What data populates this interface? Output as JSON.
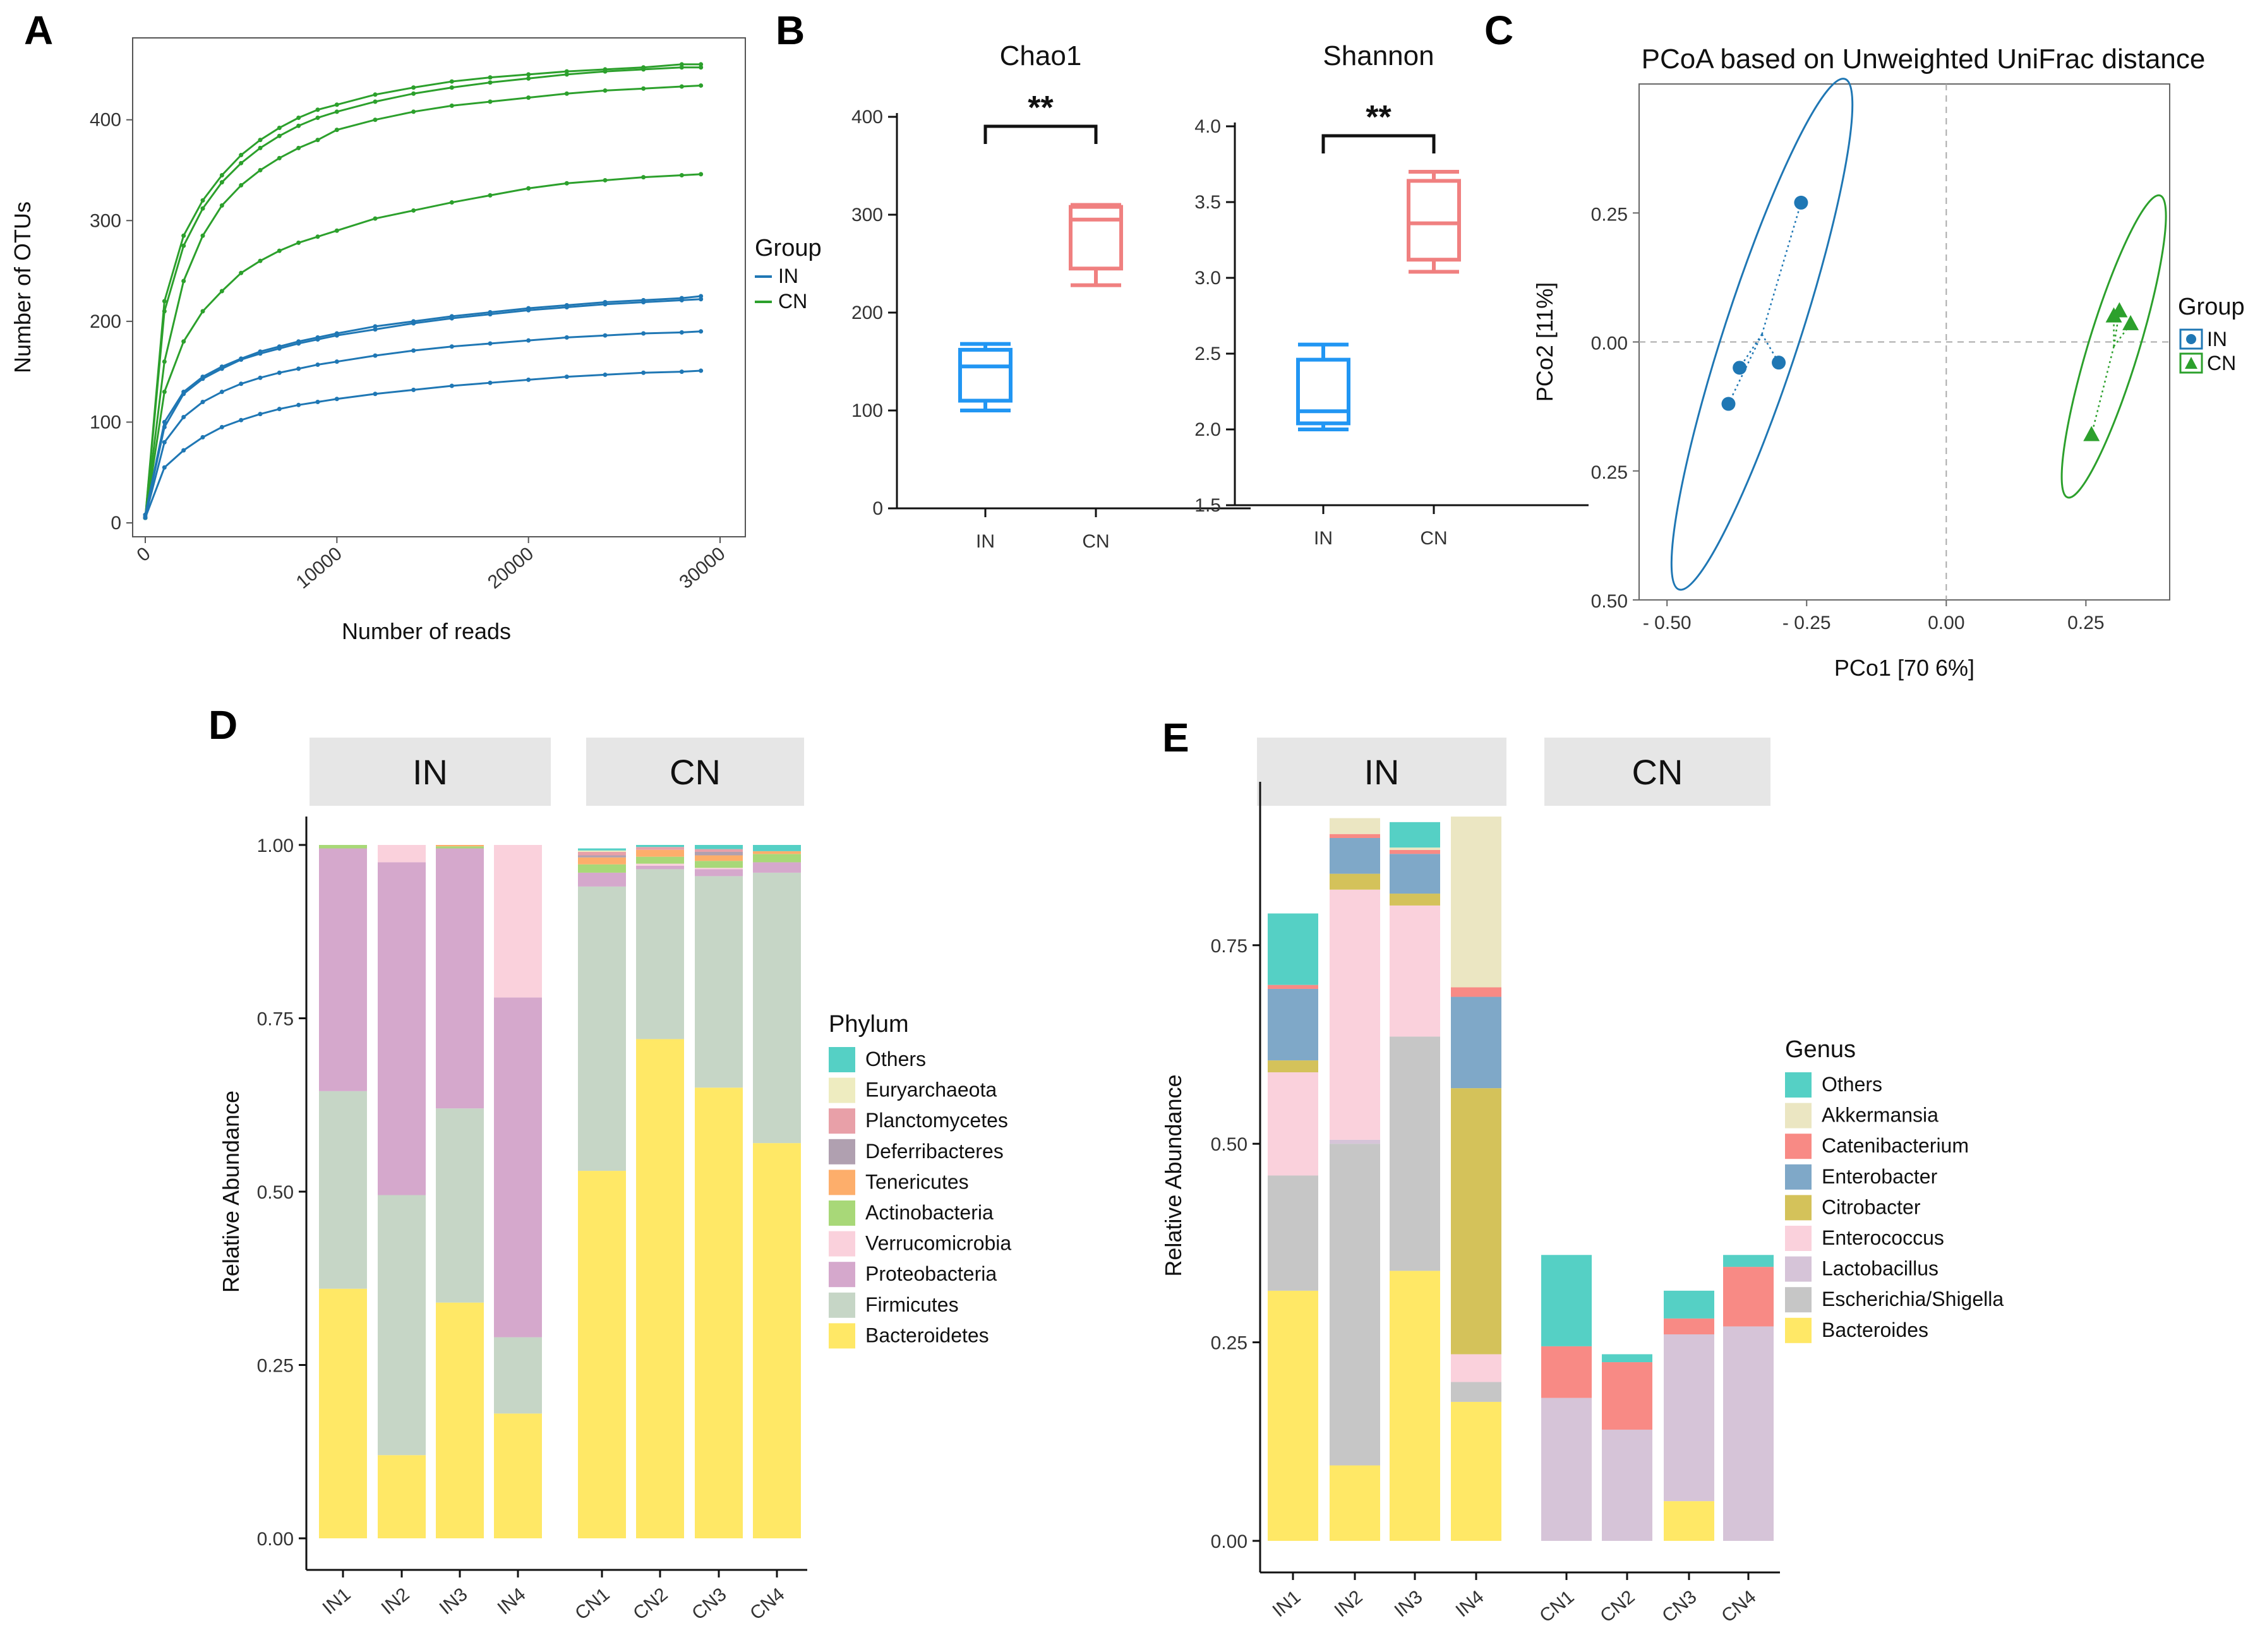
{
  "chart_data": [
    {
      "panel": "A",
      "type": "line",
      "xlabel": "Number of reads",
      "ylabel": "Number of OTUs",
      "xlim": [
        0,
        30000
      ],
      "ylim": [
        0,
        470
      ],
      "xticks": [
        0,
        10000,
        20000,
        30000
      ],
      "yticks": [
        0,
        100,
        200,
        300,
        400
      ],
      "legend_title": "Group",
      "legend": [
        {
          "name": "IN",
          "color": "#1f77b4"
        },
        {
          "name": "CN",
          "color": "#2ca02c"
        }
      ],
      "x": [
        0,
        1000,
        2000,
        3000,
        4000,
        5000,
        6000,
        7000,
        8000,
        9000,
        10000,
        12000,
        14000,
        16000,
        18000,
        20000,
        22000,
        24000,
        26000,
        28000,
        29000
      ],
      "series": [
        {
          "name": "CN",
          "values": [
            5,
            220,
            285,
            320,
            345,
            365,
            380,
            392,
            402,
            410,
            415,
            425,
            432,
            438,
            442,
            445,
            448,
            450,
            452,
            455,
            455
          ]
        },
        {
          "name": "CN",
          "values": [
            5,
            210,
            275,
            312,
            338,
            357,
            372,
            384,
            394,
            402,
            408,
            418,
            426,
            432,
            437,
            441,
            445,
            448,
            450,
            452,
            452
          ]
        },
        {
          "name": "CN",
          "values": [
            5,
            160,
            240,
            285,
            315,
            335,
            350,
            362,
            372,
            380,
            390,
            400,
            408,
            414,
            418,
            422,
            426,
            429,
            431,
            433,
            434
          ]
        },
        {
          "name": "CN",
          "values": [
            5,
            130,
            180,
            210,
            230,
            248,
            260,
            270,
            278,
            284,
            290,
            302,
            310,
            318,
            325,
            332,
            337,
            340,
            343,
            345,
            346
          ]
        },
        {
          "name": "IN",
          "values": [
            8,
            100,
            130,
            145,
            155,
            163,
            170,
            175,
            180,
            184,
            188,
            195,
            200,
            205,
            209,
            213,
            216,
            219,
            221,
            223,
            225
          ]
        },
        {
          "name": "IN",
          "values": [
            8,
            95,
            128,
            143,
            153,
            162,
            168,
            173,
            178,
            182,
            186,
            192,
            198,
            203,
            207,
            211,
            214,
            217,
            219,
            221,
            222
          ]
        },
        {
          "name": "IN",
          "values": [
            6,
            80,
            105,
            120,
            130,
            138,
            144,
            149,
            153,
            157,
            160,
            166,
            171,
            175,
            178,
            181,
            184,
            186,
            188,
            189,
            190
          ]
        },
        {
          "name": "IN",
          "values": [
            5,
            55,
            72,
            85,
            95,
            102,
            108,
            113,
            117,
            120,
            123,
            128,
            132,
            136,
            139,
            142,
            145,
            147,
            149,
            150,
            151
          ]
        }
      ]
    },
    {
      "panel": "B1",
      "type": "box",
      "title": "Chao1",
      "categories": [
        "IN",
        "CN"
      ],
      "ylim": [
        0,
        400
      ],
      "yticks": [
        0,
        100,
        200,
        300,
        400
      ],
      "significance": "**",
      "boxes": [
        {
          "name": "IN",
          "min": 100,
          "q1": 110,
          "median": 145,
          "q3": 162,
          "max": 168,
          "color": "#2196f3"
        },
        {
          "name": "CN",
          "min": 228,
          "q1": 245,
          "median": 295,
          "q3": 308,
          "max": 310,
          "color": "#f08080"
        }
      ]
    },
    {
      "panel": "B2",
      "type": "box",
      "title": "Shannon",
      "categories": [
        "IN",
        "CN"
      ],
      "ylim": [
        1.5,
        4.0
      ],
      "yticks": [
        1.5,
        2.0,
        2.5,
        3.0,
        3.5,
        4.0
      ],
      "ytick_labels": [
        "1.5",
        "2.0",
        "2.5",
        "3.0",
        "3.5",
        "4.0"
      ],
      "significance": "**",
      "boxes": [
        {
          "name": "IN",
          "min": 2.0,
          "q1": 2.04,
          "median": 2.12,
          "q3": 2.46,
          "max": 2.56,
          "color": "#2196f3"
        },
        {
          "name": "CN",
          "min": 3.04,
          "q1": 3.12,
          "median": 3.36,
          "q3": 3.64,
          "max": 3.7,
          "color": "#f08080"
        }
      ]
    },
    {
      "panel": "C",
      "type": "scatter",
      "title": "PCoA based on Unweighted UniFrac distance",
      "xlabel": "PCo1 [70 6%]",
      "ylabel": "PCo2 [11%]",
      "xlim": [
        -0.55,
        0.4
      ],
      "ylim": [
        -0.5,
        0.5
      ],
      "xticks": [
        -0.5,
        -0.25,
        0.0,
        0.25
      ],
      "xtick_labels": [
        "- 0.50",
        "- 0.25",
        "0.00",
        "0.25"
      ],
      "yticks": [
        0.25,
        0.0,
        -0.25,
        -0.5
      ],
      "ytick_labels": [
        "0.25",
        "0.00",
        "0.25",
        "0.50"
      ],
      "legend_title": "Group",
      "groups": [
        {
          "name": "IN",
          "color": "#1f77b4",
          "marker": "circle",
          "points": [
            [
              -0.26,
              0.27
            ],
            [
              -0.37,
              -0.05
            ],
            [
              -0.3,
              -0.04
            ],
            [
              -0.39,
              -0.12
            ]
          ]
        },
        {
          "name": "CN",
          "color": "#2ca02c",
          "marker": "triangle",
          "points": [
            [
              0.31,
              0.06
            ],
            [
              0.33,
              0.035
            ],
            [
              0.3,
              0.05
            ],
            [
              0.26,
              -0.18
            ]
          ]
        }
      ]
    },
    {
      "panel": "D",
      "type": "stacked_bar",
      "ylabel": "Relative Abundance",
      "ylim": [
        0,
        1
      ],
      "yticks": [
        0,
        0.25,
        0.5,
        0.75,
        1.0
      ],
      "ytick_labels": [
        "0.00",
        "0.25",
        "0.50",
        "0.75",
        "1.00"
      ],
      "facets": [
        "IN",
        "CN"
      ],
      "categories": [
        "IN1",
        "IN2",
        "IN3",
        "IN4",
        "CN1",
        "CN2",
        "CN3",
        "CN4"
      ],
      "legend_title": "Phylum",
      "series": [
        {
          "name": "Bacteroidetes",
          "color": "#ffe866",
          "values": [
            0.36,
            0.12,
            0.34,
            0.18,
            0.53,
            0.72,
            0.65,
            0.57
          ]
        },
        {
          "name": "Firmicutes",
          "color": "#c6d6c6",
          "values": [
            0.285,
            0.375,
            0.28,
            0.11,
            0.41,
            0.245,
            0.305,
            0.39
          ]
        },
        {
          "name": "Proteobacteria",
          "color": "#d5a8cc",
          "values": [
            0.35,
            0.48,
            0.375,
            0.49,
            0.02,
            0.005,
            0.01,
            0.015
          ]
        },
        {
          "name": "Verrucomicrobia",
          "color": "#fad1dc",
          "values": [
            0.0,
            0.025,
            0.0,
            0.22,
            0.0,
            0.003,
            0.002,
            0.0
          ]
        },
        {
          "name": "Actinobacteria",
          "color": "#a8d878",
          "values": [
            0.005,
            0.0,
            0.003,
            0.0,
            0.012,
            0.01,
            0.01,
            0.012
          ]
        },
        {
          "name": "Tenericutes",
          "color": "#fdae6b",
          "values": [
            0.0,
            0.0,
            0.002,
            0.0,
            0.01,
            0.01,
            0.008,
            0.004
          ]
        },
        {
          "name": "Deferribacteres",
          "color": "#b0a0b0",
          "values": [
            0.0,
            0.0,
            0.0,
            0.0,
            0.003,
            0.0,
            0.005,
            0.0
          ]
        },
        {
          "name": "Planctomycetes",
          "color": "#e8a0a8",
          "values": [
            0.0,
            0.0,
            0.0,
            0.0,
            0.005,
            0.004,
            0.004,
            0.0
          ]
        },
        {
          "name": "Euryarchaeota",
          "color": "#eeecc0",
          "values": [
            0.0,
            0.0,
            0.0,
            0.0,
            0.002,
            0.0,
            0.0,
            0.0
          ]
        },
        {
          "name": "Others",
          "color": "#55d0c5",
          "values": [
            0.0,
            0.0,
            0.0,
            0.0,
            0.003,
            0.003,
            0.006,
            0.009
          ]
        }
      ]
    },
    {
      "panel": "E",
      "type": "stacked_bar",
      "ylabel": "Relative Abundance",
      "ylim": [
        0,
        0.92
      ],
      "yticks": [
        0,
        0.25,
        0.5,
        0.75
      ],
      "ytick_labels": [
        "0.00",
        "0.25",
        "0.50",
        "0.75"
      ],
      "facets": [
        "IN",
        "CN"
      ],
      "categories": [
        "IN1",
        "IN2",
        "IN3",
        "IN4",
        "CN1",
        "CN2",
        "CN3",
        "CN4"
      ],
      "legend_title": "Genus",
      "series": [
        {
          "name": "Bacteroides",
          "color": "#ffe866",
          "values": [
            0.315,
            0.095,
            0.34,
            0.175,
            0.0,
            0.0,
            0.05,
            0.0
          ]
        },
        {
          "name": "Escherichia/Shigella",
          "color": "#c6c6c6",
          "values": [
            0.145,
            0.405,
            0.295,
            0.025,
            0.0,
            0.0,
            0.0,
            0.0
          ]
        },
        {
          "name": "Lactobacillus",
          "color": "#d6c4d8",
          "values": [
            0.0,
            0.005,
            0.0,
            0.0,
            0.18,
            0.14,
            0.21,
            0.27
          ]
        },
        {
          "name": "Enterococcus",
          "color": "#fad1dc",
          "values": [
            0.13,
            0.315,
            0.165,
            0.035,
            0.0,
            0.0,
            0.0,
            0.0
          ]
        },
        {
          "name": "Citrobacter",
          "color": "#d4c25a",
          "values": [
            0.015,
            0.02,
            0.015,
            0.335,
            0.0,
            0.0,
            0.0,
            0.0
          ]
        },
        {
          "name": "Enterobacter",
          "color": "#7fa8c8",
          "values": [
            0.09,
            0.045,
            0.05,
            0.115,
            0.0,
            0.0,
            0.0,
            0.0
          ]
        },
        {
          "name": "Catenibacterium",
          "color": "#f88a85",
          "values": [
            0.005,
            0.005,
            0.005,
            0.012,
            0.065,
            0.085,
            0.02,
            0.075
          ]
        },
        {
          "name": "Akkermansia",
          "color": "#ebe6c2",
          "values": [
            0.0,
            0.02,
            0.003,
            0.215,
            0.0,
            0.0,
            0.0,
            0.0
          ]
        },
        {
          "name": "Others",
          "color": "#55d0c5",
          "values": [
            0.09,
            0.0,
            0.032,
            0.0,
            0.115,
            0.01,
            0.035,
            0.015
          ]
        }
      ]
    }
  ],
  "panels": {
    "a": "A",
    "b": "B",
    "c": "C",
    "d": "D",
    "e": "E"
  }
}
